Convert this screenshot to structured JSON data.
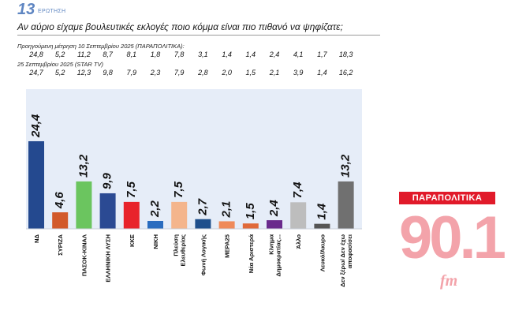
{
  "header": {
    "question_number": "13",
    "question_word": "ΕΡΩΤΗΣΗ",
    "question": "Αν αύριο είχαμε βουλευτικές εκλογές ποιο κόμμα είναι πιο πιθανό να ψηφίζατε;"
  },
  "previous_measurement": {
    "caption": "Προηγούμενη μέτρηση 10 Σεπτεμβρίου 2025 (ΠΑΡΑΠΟΛΙΤΙΚΑ):",
    "values": [
      "24,8",
      "5,2",
      "11,2",
      "8,7",
      "8,1",
      "1,8",
      "7,8",
      "3,1",
      "1,4",
      "1,4",
      "2,4",
      "4,1",
      "1,7",
      "18,3"
    ]
  },
  "other_measurement": {
    "caption": "25 Σεπτεμβρίου 2025 (STAR TV)",
    "values": [
      "24,7",
      "5,2",
      "12,3",
      "9,8",
      "7,9",
      "2,3",
      "7,9",
      "2,8",
      "2,0",
      "1,5",
      "2,1",
      "3,9",
      "1,4",
      "16,2"
    ]
  },
  "logo": {
    "top": "ΠΑΡΑΠΟΛΙΤΙΚΑ",
    "number": "90.1",
    "fm": "fm"
  },
  "chart_data": {
    "type": "bar",
    "title": "",
    "xlabel": "",
    "ylabel": "",
    "ylim": [
      0,
      30
    ],
    "categories": [
      [
        "ΝΔ"
      ],
      [
        "ΣΥΡΙΖΑ"
      ],
      [
        "ΠΑΣΟΚ-ΚΙΝΑΛ"
      ],
      [
        "ΕΛΛΗΝΙΚΗ ΛΥΣΗ"
      ],
      [
        "ΚΚΕ"
      ],
      [
        "ΝΙΚΗ"
      ],
      [
        "Πλεύση",
        "Ελευθερίας"
      ],
      [
        "Φωνή Λογικής"
      ],
      [
        "ΜΕΡΑ25"
      ],
      [
        "Νέα Αριστερά"
      ],
      [
        "Κίνημα",
        "Δημοκρατίας..."
      ],
      [
        "Άλλο"
      ],
      [
        "Λευκό/Άκυρο"
      ],
      [
        "Δεν ξέρω/ Δεν έχω",
        "αποφασίσει"
      ]
    ],
    "values": [
      24.4,
      4.6,
      13.2,
      9.9,
      7.5,
      2.2,
      7.5,
      2.7,
      2.1,
      1.5,
      2.4,
      7.4,
      1.4,
      13.2
    ],
    "value_labels": [
      "24,4",
      "4,6",
      "13,2",
      "9,9",
      "7,5",
      "2,2",
      "7,5",
      "2,7",
      "2,1",
      "1,5",
      "2,4",
      "7,4",
      "1,4",
      "13,2"
    ],
    "colors": [
      "#24498f",
      "#d2592a",
      "#6bc55f",
      "#2b4a93",
      "#e8232b",
      "#2a6cbf",
      "#f4b58c",
      "#1f4f8c",
      "#ef8a5a",
      "#e06a3a",
      "#6a2a8c",
      "#bdbdbd",
      "#555555",
      "#707070"
    ],
    "grid": false,
    "legend": "none"
  }
}
